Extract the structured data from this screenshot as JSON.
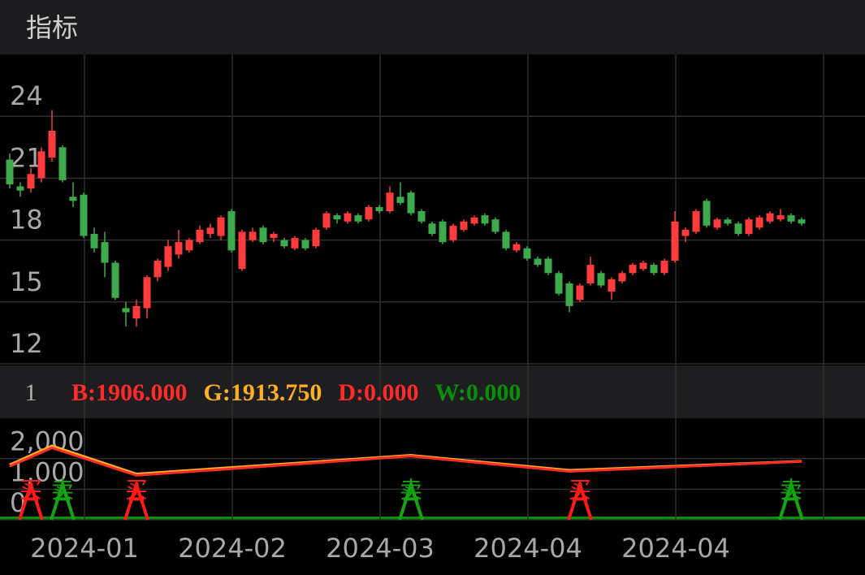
{
  "header": {
    "title": "指标"
  },
  "chart_data": [
    {
      "type": "candlestick",
      "up_color": "#ff3b3b",
      "down_color": "#3dab4b",
      "ylim": [
        12,
        27
      ],
      "yticks": [
        12,
        15,
        18,
        21,
        24
      ],
      "xticks": [
        {
          "value": 7,
          "label": "2024-01"
        },
        {
          "value": 21,
          "label": "2024-02"
        },
        {
          "value": 35,
          "label": "2024-03"
        },
        {
          "value": 49,
          "label": "2024-04"
        },
        {
          "value": 63,
          "label": "2024-04"
        }
      ],
      "grid": true,
      "open": [
        21.9,
        20.6,
        20.5,
        21.0,
        22.0,
        22.5,
        20.1,
        20.2,
        18.3,
        17.9,
        16.9,
        14.7,
        14.2,
        14.7,
        16.2,
        16.7,
        17.3,
        17.5,
        17.9,
        18.3,
        18.2,
        19.4,
        16.6,
        18.0,
        18.6,
        18.1,
        18.0,
        17.6,
        18.0,
        17.7,
        18.6,
        19.2,
        18.9,
        19.2,
        19.0,
        19.6,
        19.4,
        20.1,
        20.3,
        19.4,
        18.8,
        18.9,
        18.0,
        18.5,
        18.8,
        19.2,
        19.0,
        18.4,
        17.5,
        17.6,
        17.1,
        17.1,
        16.4,
        15.9,
        15.1,
        15.9,
        16.4,
        15.5,
        16.0,
        16.4,
        16.6,
        16.8,
        16.4,
        17.0,
        18.2,
        18.4,
        19.9,
        18.6,
        19.0,
        18.8,
        18.3,
        18.6,
        18.9,
        19.0,
        19.2,
        19.0
      ],
      "close": [
        20.7,
        20.4,
        21.2,
        22.3,
        23.3,
        20.9,
        19.9,
        18.2,
        17.6,
        16.9,
        15.2,
        14.5,
        14.8,
        16.2,
        17.0,
        17.7,
        17.9,
        18.0,
        18.5,
        18.6,
        19.1,
        17.5,
        18.4,
        18.4,
        17.9,
        18.3,
        17.7,
        18.1,
        17.6,
        18.5,
        19.3,
        19.0,
        19.3,
        18.9,
        19.6,
        19.4,
        20.3,
        19.8,
        19.3,
        18.9,
        18.3,
        17.9,
        18.7,
        18.9,
        19.1,
        18.8,
        18.4,
        17.6,
        17.8,
        17.1,
        16.8,
        16.4,
        15.4,
        14.8,
        15.8,
        16.8,
        15.8,
        16.1,
        16.4,
        16.8,
        16.9,
        16.4,
        17.0,
        18.9,
        18.5,
        19.4,
        18.7,
        19.0,
        18.8,
        18.3,
        19.0,
        19.1,
        19.3,
        19.2,
        18.9,
        18.8
      ],
      "high": [
        22.2,
        20.8,
        21.5,
        22.5,
        24.3,
        22.6,
        20.8,
        20.3,
        18.6,
        18.4,
        17.0,
        15.0,
        15.1,
        16.3,
        17.1,
        18.0,
        18.5,
        18.1,
        18.7,
        18.8,
        19.2,
        19.5,
        18.5,
        18.6,
        18.7,
        18.4,
        18.1,
        18.2,
        18.1,
        18.6,
        19.4,
        19.3,
        19.4,
        19.3,
        19.7,
        19.7,
        20.6,
        20.8,
        20.4,
        19.5,
        18.9,
        19.0,
        18.8,
        19.0,
        19.2,
        19.3,
        19.1,
        18.5,
        17.9,
        17.7,
        17.2,
        17.2,
        16.5,
        16.0,
        15.9,
        17.2,
        16.5,
        16.2,
        16.5,
        16.9,
        17.0,
        16.9,
        17.1,
        19.4,
        18.6,
        19.5,
        20.0,
        19.1,
        19.1,
        18.9,
        19.1,
        19.2,
        19.4,
        19.5,
        19.3,
        19.1
      ],
      "low": [
        20.5,
        20.1,
        20.3,
        20.8,
        21.8,
        20.8,
        19.6,
        18.1,
        17.4,
        16.2,
        15.1,
        13.8,
        13.8,
        14.2,
        16.0,
        16.5,
        17.1,
        17.4,
        17.8,
        18.1,
        18.0,
        17.4,
        16.5,
        17.9,
        17.8,
        17.9,
        17.6,
        17.5,
        17.5,
        17.6,
        18.5,
        18.8,
        18.8,
        18.8,
        18.9,
        19.3,
        19.3,
        19.7,
        19.2,
        18.8,
        18.2,
        17.8,
        17.9,
        18.4,
        18.7,
        18.7,
        18.3,
        17.5,
        17.4,
        17.0,
        16.7,
        16.3,
        15.3,
        14.5,
        15.0,
        15.8,
        15.7,
        15.1,
        15.9,
        16.3,
        16.5,
        16.3,
        16.3,
        16.9,
        17.9,
        18.3,
        18.6,
        18.5,
        18.7,
        18.2,
        18.2,
        18.5,
        18.8,
        18.9,
        18.8,
        18.7
      ]
    },
    {
      "type": "indicator",
      "label": "1",
      "legend": [
        {
          "text": "B:1906.000",
          "color": "#ff2a2a"
        },
        {
          "text": "G:1913.750",
          "color": "#ffb020"
        },
        {
          "text": "D:0.000",
          "color": "#ff2a2a"
        },
        {
          "text": "W:0.000",
          "color": "#0a8f0a"
        }
      ],
      "ylim": [
        0,
        3000
      ],
      "yticks": [
        0,
        {
          "value": 1000,
          "label": "1,000"
        },
        {
          "value": 2000,
          "label": "2,000"
        }
      ],
      "x": [
        0,
        4,
        12,
        38,
        53,
        75
      ],
      "series": [
        {
          "name": "B",
          "color": "#ff2a2a",
          "values": [
            1750,
            2350,
            1450,
            2080,
            1580,
            1906
          ]
        },
        {
          "name": "G",
          "color": "#ffb020",
          "values": [
            1800,
            2420,
            1500,
            2110,
            1620,
            1913.75
          ]
        }
      ],
      "signals": [
        {
          "label": "买",
          "color": "#ff1a1a",
          "x": [
            2,
            12,
            54
          ],
          "values": [
            1000,
            1000,
            1000
          ]
        },
        {
          "label": "卖",
          "color": "#13a313",
          "x": [
            5,
            38,
            74
          ],
          "values": [
            1000,
            1000,
            1000
          ]
        }
      ]
    }
  ]
}
